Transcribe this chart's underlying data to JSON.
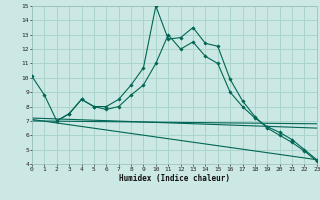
{
  "xlabel": "Humidex (Indice chaleur)",
  "bg_color": "#cce8e4",
  "grid_color": "#aad4cc",
  "line_color": "#006655",
  "xlim": [
    0,
    23
  ],
  "ylim": [
    4,
    15
  ],
  "xticks": [
    0,
    1,
    2,
    3,
    4,
    5,
    6,
    7,
    8,
    9,
    10,
    11,
    12,
    13,
    14,
    15,
    16,
    17,
    18,
    19,
    20,
    21,
    22,
    23
  ],
  "yticks": [
    4,
    5,
    6,
    7,
    8,
    9,
    10,
    11,
    12,
    13,
    14,
    15
  ],
  "lines": [
    {
      "x": [
        0,
        1,
        2,
        3,
        4,
        5,
        6,
        7,
        8,
        9,
        10,
        11,
        12,
        13,
        14,
        15,
        16,
        17,
        18,
        19,
        20,
        21,
        22,
        23
      ],
      "y": [
        10.1,
        8.8,
        7.0,
        7.5,
        8.5,
        8.0,
        8.0,
        8.5,
        9.5,
        10.7,
        15.0,
        12.7,
        12.8,
        13.5,
        12.4,
        12.2,
        9.9,
        8.4,
        7.3,
        6.5,
        6.0,
        5.5,
        4.9,
        4.2
      ],
      "markers": true
    },
    {
      "x": [
        2,
        3,
        4,
        5,
        6,
        7,
        8,
        9,
        10,
        11,
        12,
        13,
        14,
        15,
        16,
        17,
        18,
        19,
        20,
        21,
        22,
        23
      ],
      "y": [
        7.0,
        7.5,
        8.5,
        8.0,
        7.8,
        8.0,
        8.8,
        9.5,
        11.0,
        13.0,
        12.0,
        12.5,
        11.5,
        11.0,
        9.0,
        8.0,
        7.2,
        6.6,
        6.2,
        5.7,
        5.0,
        4.3
      ],
      "markers": true
    },
    {
      "x": [
        0,
        23
      ],
      "y": [
        7.2,
        6.5
      ],
      "markers": false
    },
    {
      "x": [
        0,
        23
      ],
      "y": [
        7.1,
        4.3
      ],
      "markers": false
    },
    {
      "x": [
        0,
        23
      ],
      "y": [
        7.0,
        6.8
      ],
      "markers": false
    }
  ]
}
